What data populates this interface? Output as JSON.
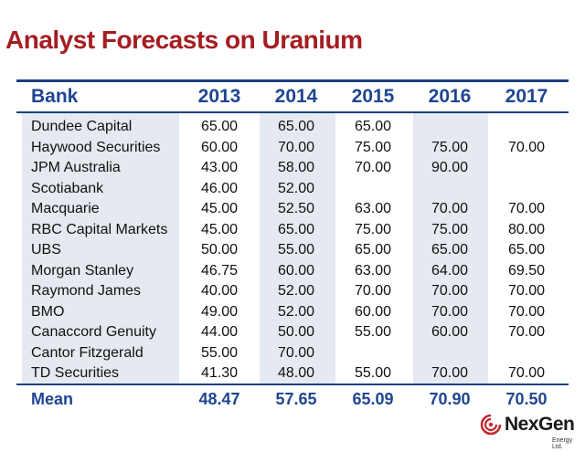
{
  "title": "Analyst Forecasts on Uranium",
  "table": {
    "headers": [
      "Bank",
      "2013",
      "2014",
      "2015",
      "2016",
      "2017"
    ],
    "rows": [
      [
        "Dundee Capital",
        "65.00",
        "65.00",
        "65.00",
        "",
        ""
      ],
      [
        "Haywood Securities",
        "60.00",
        "70.00",
        "75.00",
        "75.00",
        "70.00"
      ],
      [
        "JPM Australia",
        "43.00",
        "58.00",
        "70.00",
        "90.00",
        ""
      ],
      [
        "Scotiabank",
        "46.00",
        "52.00",
        "",
        "",
        ""
      ],
      [
        "Macquarie",
        "45.00",
        "52.50",
        "63.00",
        "70.00",
        "70.00"
      ],
      [
        "RBC Capital Markets",
        "45.00",
        "65.00",
        "75.00",
        "75.00",
        "80.00"
      ],
      [
        "UBS",
        "50.00",
        "55.00",
        "65.00",
        "65.00",
        "65.00"
      ],
      [
        "Morgan Stanley",
        "46.75",
        "60.00",
        "63.00",
        "64.00",
        "69.50"
      ],
      [
        "Raymond James",
        "40.00",
        "52.00",
        "70.00",
        "70.00",
        "70.00"
      ],
      [
        "BMO",
        "49.00",
        "52.00",
        "60.00",
        "70.00",
        "70.00"
      ],
      [
        "Canaccord Genuity",
        "44.00",
        "50.00",
        "55.00",
        "60.00",
        "70.00"
      ],
      [
        "Cantor Fitzgerald",
        "55.00",
        "70.00",
        "",
        "",
        ""
      ],
      [
        "TD Securities",
        "41.30",
        "48.00",
        "55.00",
        "70.00",
        "70.00"
      ]
    ],
    "mean": [
      "Mean",
      "48.47",
      "57.65",
      "65.09",
      "70.90",
      "70.50"
    ]
  },
  "logo": {
    "name": "NexGen",
    "sub": "Energy Ltd."
  },
  "colors": {
    "title": "#a41e22",
    "header": "#1f4590",
    "rule": "#1f3f80",
    "shade": "#e5e9f0",
    "logo_accent": "#c0282d"
  }
}
